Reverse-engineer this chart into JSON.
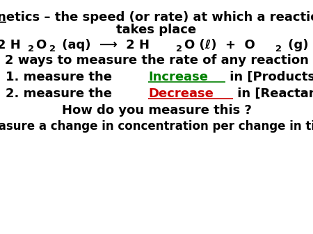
{
  "bg_color": "#ffffff",
  "line1a": "kinetics – the speed (or rate) at which a reaction",
  "line1b": "takes place",
  "line3": "2 ways to measure the rate of any reaction",
  "line4_pre": "1. measure the ",
  "line4_highlight": "Increase",
  "line4_post": " in [Products] over time",
  "line4_highlight_color": "#008000",
  "line5_pre": "2. measure the ",
  "line5_highlight": "Decrease",
  "line5_post": " in [Reactants] over time",
  "line5_highlight_color": "#cc0000",
  "line6": "How do you measure this ?",
  "line7": "measure a change in concentration per change in time",
  "font_size_main": 13,
  "font_size_eq": 13,
  "font_size_bottom": 12,
  "eq_segments": [
    [
      "2 H",
      false
    ],
    [
      "2",
      true
    ],
    [
      "O",
      false
    ],
    [
      "2",
      true
    ],
    [
      " (aq)  ⟶  2 H",
      false
    ],
    [
      "2",
      true
    ],
    [
      "O (ℓ)  +  O",
      false
    ],
    [
      "2",
      true
    ],
    [
      " (g)",
      false
    ]
  ]
}
